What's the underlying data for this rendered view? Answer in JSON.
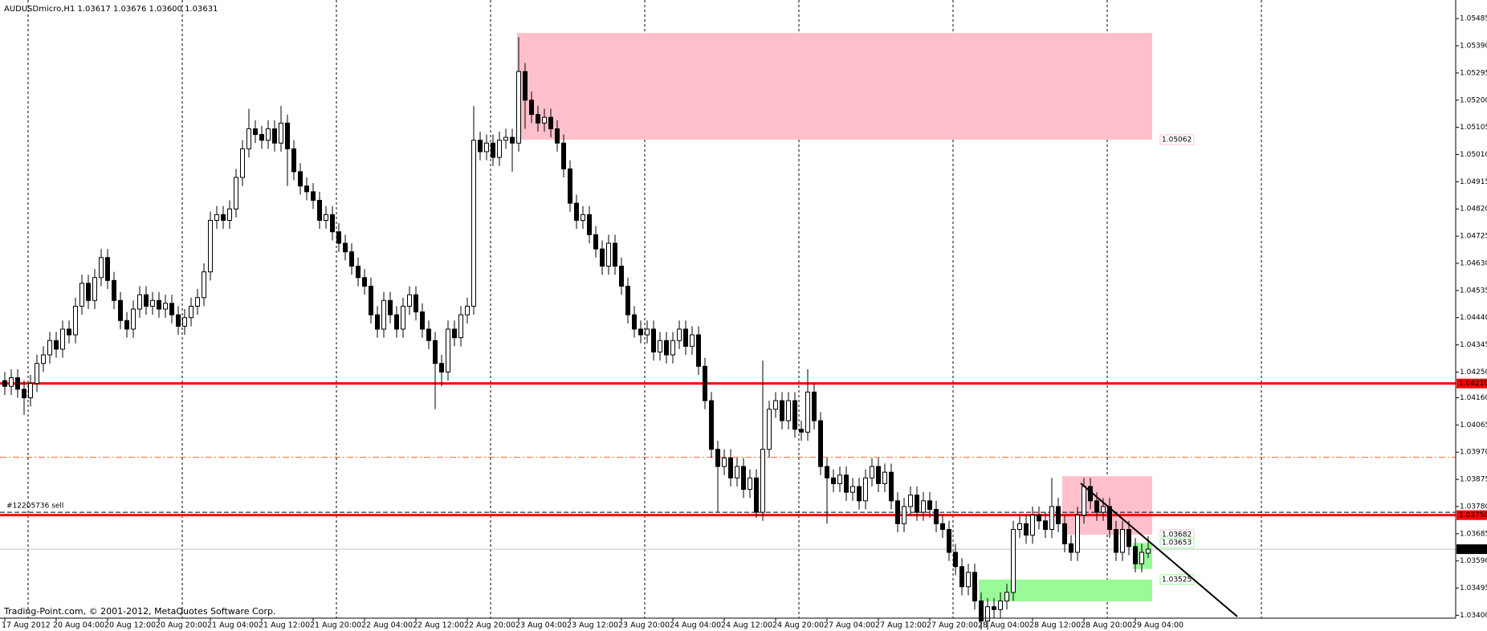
{
  "chart_data": {
    "type": "candlestick",
    "title": "AUDUSDmicro,H1  1.03617 1.03676 1.03600 1.03631",
    "footer": "Trading-Point.com, © 2001-2012, MetaQuotes Software Corp.",
    "categories": [
      "17 Aug 2012",
      null,
      null,
      null,
      null,
      null,
      null,
      null,
      "20 Aug 04:00",
      null,
      null,
      null,
      null,
      null,
      null,
      null,
      "20 Aug 12:00",
      null,
      null,
      null,
      null,
      null,
      null,
      null,
      "20 Aug 20:00",
      null,
      null,
      null,
      null,
      null,
      null,
      null,
      "21 Aug 04:00",
      null,
      null,
      null,
      null,
      null,
      null,
      null,
      "21 Aug 12:00",
      null,
      null,
      null,
      null,
      null,
      null,
      null,
      "21 Aug 20:00",
      null,
      null,
      null,
      null,
      null,
      null,
      null,
      "22 Aug 04:00",
      null,
      null,
      null,
      null,
      null,
      null,
      null,
      "22 Aug 12:00",
      null,
      null,
      null,
      null,
      null,
      null,
      null,
      "22 Aug 20:00",
      null,
      null,
      null,
      null,
      null,
      null,
      null,
      "23 Aug 04:00",
      null,
      null,
      null,
      null,
      null,
      null,
      null,
      "23 Aug 12:00",
      null,
      null,
      null,
      null,
      null,
      null,
      null,
      "23 Aug 20:00",
      null,
      null,
      null,
      null,
      null,
      null,
      null,
      "24 Aug 04:00",
      null,
      null,
      null,
      null,
      null,
      null,
      null,
      "24 Aug 12:00",
      null,
      null,
      null,
      null,
      null,
      null,
      null,
      "24 Aug 20:00",
      null,
      null,
      null,
      null,
      null,
      null,
      null,
      "27 Aug 04:00",
      null,
      null,
      null,
      null,
      null,
      null,
      null,
      "27 Aug 12:00",
      null,
      null,
      null,
      null,
      null,
      null,
      null,
      "27 Aug 20:00",
      null,
      null,
      null,
      null,
      null,
      null,
      null,
      "28 Aug 04:00",
      null,
      null,
      null,
      null,
      null,
      null,
      null,
      "28 Aug 12:00",
      null,
      null,
      null,
      null,
      null,
      null,
      null,
      "28 Aug 20:00",
      null,
      null,
      null,
      null,
      null,
      null,
      null,
      "29 Aug 04:00",
      null,
      null
    ],
    "open": [
      1.0422,
      1.042,
      1.0423,
      1.0419,
      1.0416,
      1.0421,
      1.0428,
      1.0431,
      1.0436,
      1.0433,
      1.044,
      1.0438,
      1.0448,
      1.0456,
      1.045,
      1.0458,
      1.0465,
      1.0457,
      1.045,
      1.0443,
      1.044,
      1.0447,
      1.0452,
      1.0448,
      1.045,
      1.0447,
      1.0449,
      1.0445,
      1.0441,
      1.0444,
      1.0448,
      1.0451,
      1.046,
      1.0478,
      1.048,
      1.0478,
      1.0482,
      1.0493,
      1.0503,
      1.051,
      1.0508,
      1.0506,
      1.051,
      1.0505,
      1.0512,
      1.0503,
      1.0495,
      1.049,
      1.0488,
      1.0485,
      1.0478,
      1.048,
      1.0474,
      1.047,
      1.0467,
      1.0462,
      1.0458,
      1.0455,
      1.0445,
      1.044,
      1.045,
      1.0445,
      1.044,
      1.0448,
      1.0452,
      1.0446,
      1.044,
      1.0436,
      1.0428,
      1.0425,
      1.044,
      1.0437,
      1.0445,
      1.0448,
      1.0506,
      1.0502,
      1.0505,
      1.05,
      1.0506,
      1.0507,
      1.0505,
      1.053,
      1.052,
      1.0515,
      1.0512,
      1.0514,
      1.051,
      1.0505,
      1.0496,
      1.0484,
      1.0478,
      1.048,
      1.0473,
      1.0468,
      1.0462,
      1.047,
      1.0462,
      1.0455,
      1.0445,
      1.044,
      1.0438,
      1.044,
      1.0432,
      1.0436,
      1.0431,
      1.0436,
      1.044,
      1.0434,
      1.0438,
      1.0427,
      1.0415,
      1.0398,
      1.0392,
      1.0395,
      1.0388,
      1.0392,
      1.0384,
      1.0388,
      1.0376,
      1.0398,
      1.0412,
      1.0415,
      1.0408,
      1.0415,
      1.0405,
      1.0404,
      1.0418,
      1.0408,
      1.0392,
      1.0388,
      1.0386,
      1.0389,
      1.0383,
      1.0385,
      1.038,
      1.0388,
      1.0392,
      1.0386,
      1.039,
      1.038,
      1.0372,
      1.0378,
      1.0382,
      1.0376,
      1.038,
      1.0377,
      1.0372,
      1.037,
      1.0362,
      1.0357,
      1.035,
      1.0355,
      1.0345,
      1.0338,
      1.0343,
      1.0342,
      1.0345,
      1.0348,
      1.037,
      1.0372,
      1.0368,
      1.0375,
      1.0373,
      1.037,
      1.0378,
      1.0372,
      1.0365,
      1.0362,
      1.0375,
      1.0385,
      1.038,
      1.0376,
      1.0378,
      1.037,
      1.0362,
      1.037,
      1.0364,
      1.0358,
      1.03617
    ],
    "high": [
      1.0425,
      1.0426,
      1.0426,
      1.0422,
      1.0424,
      1.0431,
      1.0434,
      1.0439,
      1.0439,
      1.0443,
      1.0443,
      1.0451,
      1.0459,
      1.0459,
      1.0461,
      1.0468,
      1.0468,
      1.046,
      1.0453,
      1.0446,
      1.045,
      1.0455,
      1.0455,
      1.0453,
      1.0453,
      1.0452,
      1.0452,
      1.0448,
      1.0447,
      1.0451,
      1.0454,
      1.0463,
      1.0481,
      1.0483,
      1.0483,
      1.0485,
      1.0496,
      1.0506,
      1.0517,
      1.0513,
      1.0511,
      1.0513,
      1.0513,
      1.0518,
      1.0515,
      1.0506,
      1.0498,
      1.0493,
      1.0491,
      1.0488,
      1.0483,
      1.0483,
      1.0477,
      1.0473,
      1.047,
      1.0465,
      1.0461,
      1.0458,
      1.0448,
      1.0453,
      1.0453,
      1.0448,
      1.0451,
      1.0455,
      1.0455,
      1.0449,
      1.0443,
      1.0439,
      1.0431,
      1.0443,
      1.0443,
      1.0448,
      1.0451,
      1.0518,
      1.0509,
      1.0508,
      1.0508,
      1.0509,
      1.051,
      1.051,
      1.0542,
      1.0533,
      1.0523,
      1.0518,
      1.0517,
      1.0517,
      1.0513,
      1.0508,
      1.0499,
      1.0487,
      1.0483,
      1.0483,
      1.0476,
      1.0471,
      1.0473,
      1.0473,
      1.0465,
      1.0458,
      1.0448,
      1.0443,
      1.0443,
      1.0443,
      1.0439,
      1.0439,
      1.0439,
      1.0443,
      1.0443,
      1.0441,
      1.0441,
      1.043,
      1.0418,
      1.0401,
      1.0398,
      1.0398,
      1.0395,
      1.0395,
      1.0391,
      1.0391,
      1.0429,
      1.0415,
      1.0418,
      1.0418,
      1.0418,
      1.0418,
      1.0408,
      1.0426,
      1.0421,
      1.0411,
      1.0395,
      1.0391,
      1.0392,
      1.0392,
      1.0388,
      1.0388,
      1.0391,
      1.0395,
      1.0395,
      1.0393,
      1.0393,
      1.0383,
      1.0381,
      1.0385,
      1.0385,
      1.0383,
      1.0383,
      1.038,
      1.0375,
      1.0373,
      1.0365,
      1.036,
      1.0358,
      1.0358,
      1.0348,
      1.0346,
      1.0346,
      1.0348,
      1.0351,
      1.0373,
      1.0375,
      1.0375,
      1.0378,
      1.0378,
      1.0376,
      1.0388,
      1.0381,
      1.0375,
      1.0368,
      1.0378,
      1.0388,
      1.0388,
      1.0383,
      1.0381,
      1.0381,
      1.0373,
      1.0373,
      1.0373,
      1.0367,
      1.0365,
      1.03676
    ],
    "low": [
      1.0417,
      1.0417,
      1.0416,
      1.041,
      1.0413,
      1.0418,
      1.0425,
      1.0428,
      1.043,
      1.043,
      1.0435,
      1.0435,
      1.0445,
      1.0447,
      1.0447,
      1.0455,
      1.0454,
      1.0447,
      1.044,
      1.0437,
      1.0437,
      1.0444,
      1.0445,
      1.0445,
      1.0444,
      1.0444,
      1.0442,
      1.0438,
      1.0438,
      1.0441,
      1.0445,
      1.0448,
      1.0457,
      1.0475,
      1.0475,
      1.0475,
      1.0479,
      1.049,
      1.05,
      1.0505,
      1.0503,
      1.0503,
      1.0502,
      1.0502,
      1.049,
      1.0492,
      1.0487,
      1.0485,
      1.0482,
      1.0475,
      1.0475,
      1.0471,
      1.0467,
      1.0464,
      1.0459,
      1.0455,
      1.0452,
      1.0442,
      1.0437,
      1.0437,
      1.0442,
      1.0437,
      1.0437,
      1.0445,
      1.0443,
      1.0437,
      1.0433,
      1.0412,
      1.042,
      1.0422,
      1.0434,
      1.0434,
      1.0442,
      1.0445,
      1.0499,
      1.0499,
      1.0497,
      1.0497,
      1.0503,
      1.0495,
      1.0502,
      1.051,
      1.0512,
      1.0509,
      1.0509,
      1.0507,
      1.0502,
      1.0493,
      1.0481,
      1.0475,
      1.0475,
      1.047,
      1.0465,
      1.0459,
      1.0459,
      1.0459,
      1.0452,
      1.0442,
      1.0437,
      1.0435,
      1.0435,
      1.0429,
      1.0429,
      1.0428,
      1.0428,
      1.0433,
      1.0431,
      1.0431,
      1.0424,
      1.0412,
      1.0395,
      1.0376,
      1.0389,
      1.0385,
      1.0385,
      1.0381,
      1.0381,
      1.0374,
      1.0373,
      1.0395,
      1.0409,
      1.0405,
      1.0405,
      1.0402,
      1.0401,
      1.0401,
      1.0405,
      1.0389,
      1.0372,
      1.0383,
      1.0383,
      1.038,
      1.038,
      1.0377,
      1.0377,
      1.0385,
      1.0383,
      1.0383,
      1.0377,
      1.0369,
      1.0369,
      1.0375,
      1.0373,
      1.0373,
      1.0374,
      1.0369,
      1.0367,
      1.0359,
      1.0354,
      1.0347,
      1.0347,
      1.0342,
      1.0335,
      1.0335,
      1.0339,
      1.0339,
      1.0342,
      1.0345,
      1.0367,
      1.0365,
      1.0365,
      1.037,
      1.0367,
      1.0367,
      1.0369,
      1.0362,
      1.0359,
      1.0359,
      1.0372,
      1.0377,
      1.0373,
      1.0373,
      1.0367,
      1.0359,
      1.0359,
      1.0361,
      1.0355,
      1.0355,
      1.036
    ],
    "close": [
      1.042,
      1.0423,
      1.0419,
      1.0416,
      1.0421,
      1.0428,
      1.0431,
      1.0436,
      1.0433,
      1.044,
      1.0438,
      1.0448,
      1.0456,
      1.045,
      1.0458,
      1.0465,
      1.0457,
      1.045,
      1.0443,
      1.044,
      1.0447,
      1.0452,
      1.0448,
      1.045,
      1.0447,
      1.0449,
      1.0445,
      1.0441,
      1.0444,
      1.0448,
      1.0451,
      1.046,
      1.0478,
      1.048,
      1.0478,
      1.0482,
      1.0493,
      1.0503,
      1.051,
      1.0508,
      1.0506,
      1.051,
      1.0505,
      1.0512,
      1.0503,
      1.0495,
      1.049,
      1.0488,
      1.0485,
      1.0478,
      1.048,
      1.0474,
      1.047,
      1.0467,
      1.0462,
      1.0458,
      1.0455,
      1.0445,
      1.044,
      1.045,
      1.0445,
      1.044,
      1.0448,
      1.0452,
      1.0446,
      1.044,
      1.0436,
      1.0428,
      1.0425,
      1.044,
      1.0437,
      1.0445,
      1.0448,
      1.0506,
      1.0502,
      1.0505,
      1.05,
      1.0506,
      1.0507,
      1.0505,
      1.053,
      1.052,
      1.0515,
      1.0512,
      1.0514,
      1.051,
      1.0505,
      1.0496,
      1.0484,
      1.0478,
      1.048,
      1.0473,
      1.0468,
      1.0462,
      1.047,
      1.0462,
      1.0455,
      1.0445,
      1.044,
      1.0438,
      1.044,
      1.0432,
      1.0436,
      1.0431,
      1.0436,
      1.044,
      1.0434,
      1.0438,
      1.0427,
      1.0415,
      1.0398,
      1.0392,
      1.0395,
      1.0388,
      1.0392,
      1.0384,
      1.0388,
      1.0376,
      1.0398,
      1.0412,
      1.0415,
      1.0408,
      1.0415,
      1.0405,
      1.0404,
      1.0418,
      1.0408,
      1.0392,
      1.0388,
      1.0386,
      1.0389,
      1.0383,
      1.0385,
      1.038,
      1.0388,
      1.0392,
      1.0386,
      1.039,
      1.038,
      1.0372,
      1.0378,
      1.0382,
      1.0376,
      1.038,
      1.0377,
      1.0372,
      1.037,
      1.0362,
      1.0357,
      1.035,
      1.0355,
      1.0345,
      1.0338,
      1.0343,
      1.0342,
      1.0345,
      1.0348,
      1.037,
      1.0372,
      1.0368,
      1.0375,
      1.0373,
      1.037,
      1.0378,
      1.0372,
      1.0365,
      1.0362,
      1.0375,
      1.0385,
      1.038,
      1.0376,
      1.0378,
      1.037,
      1.0362,
      1.037,
      1.0364,
      1.0358,
      1.0362,
      1.03631
    ],
    "bull_color": "#ffffff",
    "bear_color": "#000000",
    "ylim": [
      1.0339,
      1.0555
    ],
    "yticks": [
      1.05485,
      {
        "value": 1.0539,
        "label": "1.05390"
      },
      1.05295,
      {
        "value": 1.052,
        "label": "1.05200"
      },
      1.05105,
      {
        "value": 1.0501,
        "label": "1.05010"
      },
      1.04915,
      {
        "value": 1.0482,
        "label": "1.04820"
      },
      1.04725,
      {
        "value": 1.0463,
        "label": "1.04630"
      },
      1.04535,
      {
        "value": 1.0444,
        "label": "1.04440"
      },
      1.04345,
      {
        "value": 1.0425,
        "label": "1.04250"
      },
      {
        "value": 1.0416,
        "label": "1.04160"
      },
      1.04065,
      {
        "value": 1.0397,
        "label": "1.03970"
      },
      1.03875,
      {
        "value": 1.0378,
        "label": "1.03780"
      },
      1.03685,
      {
        "value": 1.0359,
        "label": "1.03590"
      },
      1.03495,
      {
        "value": 1.034,
        "label": "1.03400"
      }
    ],
    "levels": [
      {
        "value": 1.0421,
        "label": "1.04210",
        "color": "#ff0000",
        "label_color": "#ff0000",
        "style": "thick"
      },
      {
        "value": 1.0375,
        "label": "1.03750",
        "color": "#ff0000",
        "label_color": "#ff0000",
        "style": "thick"
      },
      {
        "value": 1.03952,
        "color": "#ff6633",
        "style": "dashdot"
      },
      {
        "value": 1.0376,
        "color": "#000000",
        "style": "dashed",
        "text": "#12205736 sell"
      },
      {
        "value": 1.03631,
        "label": "1.03631",
        "color": "#c0c0c0",
        "label_color": "#000000",
        "style": "thin"
      }
    ],
    "zones": [
      {
        "top": 1.05435,
        "bottom": 1.05062,
        "label": "1.05062",
        "color": "#ffc0cb"
      },
      {
        "top": 1.03886,
        "bottom": 1.03682,
        "label": "1.03682",
        "color": "#ffc0cb"
      },
      {
        "top": 1.03653,
        "bottom": 1.03562,
        "label": "1.03653",
        "color": "#98fb98"
      },
      {
        "top": 1.03525,
        "bottom": 1.03449,
        "label": "1.03525",
        "color": "#98fb98"
      }
    ]
  }
}
